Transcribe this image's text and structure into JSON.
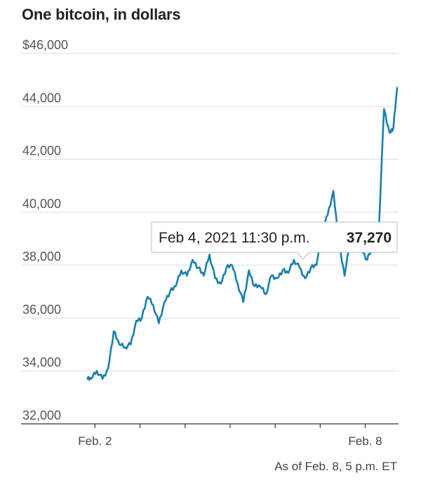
{
  "chart_data": {
    "type": "line",
    "title": "One bitcoin, in dollars",
    "ylabel": "",
    "xlabel": "",
    "ylim": [
      32000,
      46000
    ],
    "y_ticks": [
      32000,
      34000,
      36000,
      38000,
      40000,
      42000,
      44000,
      46000
    ],
    "y_tick_labels": [
      "32,000",
      "34,000",
      "36,000",
      "38,000",
      "40,000",
      "42,000",
      "44,000",
      "$46,000"
    ],
    "x_range": [
      "2021-02-01T19:00",
      "2021-02-08T17:00"
    ],
    "x_ticks": [
      "2021-02-02",
      "2021-02-03",
      "2021-02-04",
      "2021-02-05",
      "2021-02-06",
      "2021-02-07",
      "2021-02-08"
    ],
    "x_tick_labels": [
      "Feb. 2",
      "",
      "",
      "",
      "",
      "",
      "Feb. 8"
    ],
    "grid": true,
    "line_color": "#1a7fa8",
    "series": [
      {
        "x": [
          "2021-02-01T20:00",
          "2021-02-01T22:00",
          "2021-02-02T01:00",
          "2021-02-02T04:00",
          "2021-02-02T07:00",
          "2021-02-02T10:00",
          "2021-02-02T13:00",
          "2021-02-02T16:00",
          "2021-02-02T19:00",
          "2021-02-02T22:00",
          "2021-02-03T01:00",
          "2021-02-03T04:00",
          "2021-02-03T07:00",
          "2021-02-03T10:00",
          "2021-02-03T13:00",
          "2021-02-03T16:00",
          "2021-02-03T19:00",
          "2021-02-03T22:00",
          "2021-02-04T01:00",
          "2021-02-04T04:00",
          "2021-02-04T07:00",
          "2021-02-04T10:00",
          "2021-02-04T13:00",
          "2021-02-04T16:00",
          "2021-02-04T19:00",
          "2021-02-04T22:00",
          "2021-02-05T01:00",
          "2021-02-05T04:00",
          "2021-02-05T07:00",
          "2021-02-05T10:00",
          "2021-02-05T13:00",
          "2021-02-05T16:00",
          "2021-02-05T19:00",
          "2021-02-05T22:00",
          "2021-02-06T01:00",
          "2021-02-06T04:00",
          "2021-02-06T07:00",
          "2021-02-06T10:00",
          "2021-02-06T13:00",
          "2021-02-06T16:00",
          "2021-02-06T19:00",
          "2021-02-06T22:00",
          "2021-02-07T01:00",
          "2021-02-07T04:00",
          "2021-02-07T07:00",
          "2021-02-07T10:00",
          "2021-02-07T13:00",
          "2021-02-07T16:00",
          "2021-02-07T19:00",
          "2021-02-07T22:00",
          "2021-02-08T01:00",
          "2021-02-08T04:00",
          "2021-02-08T07:00",
          "2021-02-08T10:00",
          "2021-02-08T13:00",
          "2021-02-08T15:00",
          "2021-02-08T17:00"
        ],
        "values": [
          33700,
          33700,
          34000,
          33700,
          34100,
          35500,
          35000,
          34900,
          35000,
          35900,
          36000,
          36800,
          36500,
          35800,
          36600,
          37000,
          37200,
          37800,
          37600,
          38200,
          37900,
          37600,
          38400,
          37500,
          37300,
          37900,
          38000,
          37300,
          36600,
          37800,
          37200,
          37200,
          36900,
          37600,
          37500,
          37800,
          37700,
          38200,
          37900,
          37500,
          37900,
          38000,
          39200,
          39900,
          40800,
          38800,
          37600,
          38900,
          38700,
          38600,
          38200,
          38700,
          39000,
          43900,
          43000,
          43200,
          44700
        ]
      }
    ],
    "tooltip": {
      "date": "Feb 4, 2021 11:30 p.m.",
      "value": "37,270"
    },
    "footnote": "As of Feb. 8, 5 p.m. ET"
  }
}
